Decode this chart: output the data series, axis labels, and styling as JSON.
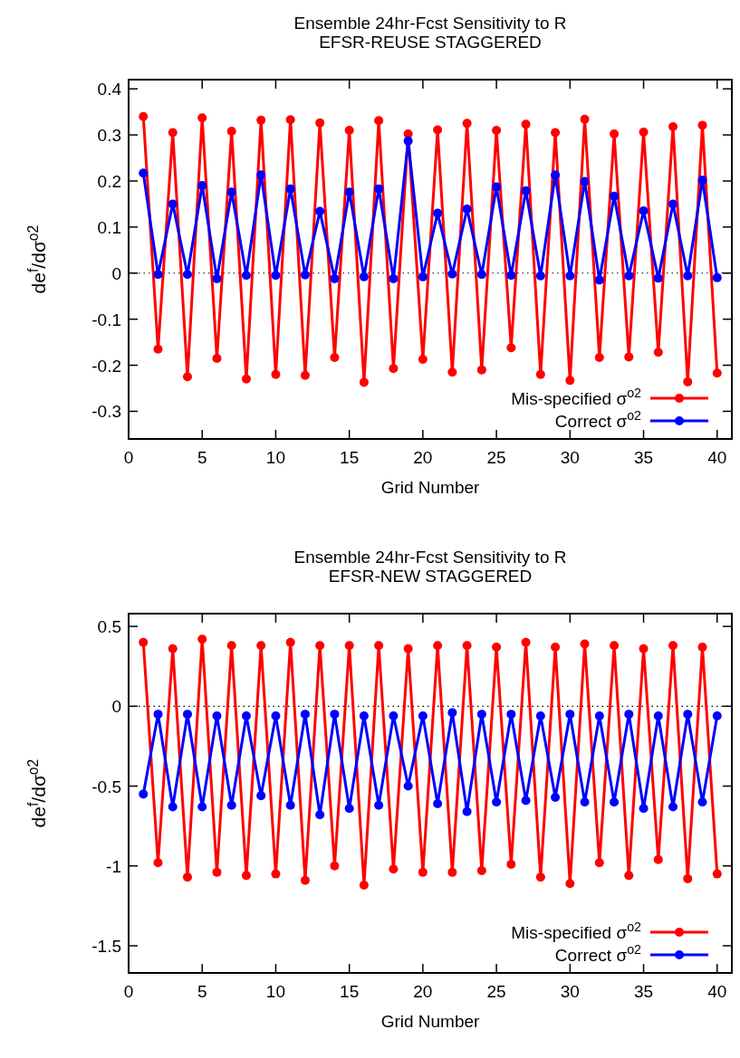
{
  "chart_data": [
    {
      "type": "line",
      "title": "Ensemble 24hr-Fcst Sensitivity to R",
      "subtitle": "EFSR-REUSE STAGGERED",
      "xlabel": "Grid Number",
      "ylabel": "de$^{f}$/dσ$^{o2}$",
      "x": [
        1,
        2,
        3,
        4,
        5,
        6,
        7,
        8,
        9,
        10,
        11,
        12,
        13,
        14,
        15,
        16,
        17,
        18,
        19,
        20,
        21,
        22,
        23,
        24,
        25,
        26,
        27,
        28,
        29,
        30,
        31,
        32,
        33,
        34,
        35,
        36,
        37,
        38,
        39,
        40
      ],
      "series": [
        {
          "name": "Mis-specified σ$^{o2}$",
          "color": "#ff0000",
          "values": [
            0.34,
            -0.165,
            0.305,
            -0.225,
            0.337,
            -0.185,
            0.308,
            -0.23,
            0.332,
            -0.22,
            0.333,
            -0.222,
            0.326,
            -0.183,
            0.31,
            -0.237,
            0.331,
            -0.207,
            0.302,
            -0.187,
            0.311,
            -0.215,
            0.325,
            -0.21,
            0.31,
            -0.162,
            0.323,
            -0.22,
            0.305,
            -0.233,
            0.334,
            -0.183,
            0.302,
            -0.182,
            0.306,
            -0.172,
            0.318,
            -0.236,
            0.321,
            -0.217
          ]
        },
        {
          "name": "Correct σ$^{o2}$",
          "color": "#0000ff",
          "values": [
            0.217,
            -0.003,
            0.15,
            -0.003,
            0.19,
            -0.012,
            0.176,
            -0.005,
            0.213,
            -0.005,
            0.183,
            -0.004,
            0.134,
            -0.012,
            0.176,
            -0.008,
            0.183,
            -0.012,
            0.287,
            -0.008,
            0.13,
            -0.002,
            0.139,
            -0.003,
            0.187,
            -0.005,
            0.179,
            -0.006,
            0.213,
            -0.006,
            0.199,
            -0.015,
            0.167,
            -0.006,
            0.135,
            -0.011,
            0.15,
            -0.006,
            0.202,
            -0.01
          ]
        }
      ],
      "xlim": [
        0,
        41
      ],
      "ylim": [
        -0.36,
        0.42
      ],
      "xticks": [
        0,
        5,
        10,
        15,
        20,
        25,
        30,
        35,
        40
      ],
      "yticks": [
        -0.3,
        -0.2,
        -0.1,
        0,
        0.1,
        0.2,
        0.3,
        0.4
      ],
      "ref_lines": [
        {
          "axis": "y",
          "value": 0,
          "line_style": "dotted",
          "color": "#000000"
        }
      ],
      "marker": "circle",
      "line_style": "solid",
      "legend": "bottom right",
      "grid": false
    },
    {
      "type": "line",
      "title": "Ensemble 24hr-Fcst Sensitivity to R",
      "subtitle": "EFSR-NEW STAGGERED",
      "xlabel": "Grid Number",
      "ylabel": "de$^{f}$/dσ$^{o2}$",
      "x": [
        1,
        2,
        3,
        4,
        5,
        6,
        7,
        8,
        9,
        10,
        11,
        12,
        13,
        14,
        15,
        16,
        17,
        18,
        19,
        20,
        21,
        22,
        23,
        24,
        25,
        26,
        27,
        28,
        29,
        30,
        31,
        32,
        33,
        34,
        35,
        36,
        37,
        38,
        39,
        40
      ],
      "series": [
        {
          "name": "Mis-specified σ$^{o2}$",
          "color": "#ff0000",
          "values": [
            0.4,
            -0.98,
            0.36,
            -1.07,
            0.42,
            -1.04,
            0.38,
            -1.06,
            0.38,
            -1.05,
            0.4,
            -1.09,
            0.38,
            -1.0,
            0.38,
            -1.12,
            0.38,
            -1.02,
            0.36,
            -1.04,
            0.38,
            -1.04,
            0.38,
            -1.03,
            0.37,
            -0.99,
            0.4,
            -1.07,
            0.37,
            -1.11,
            0.39,
            -0.98,
            0.38,
            -1.06,
            0.36,
            -0.96,
            0.38,
            -1.08,
            0.37,
            -1.05
          ]
        },
        {
          "name": "Correct σ$^{o2}$",
          "color": "#0000ff",
          "values": [
            -0.55,
            -0.05,
            -0.63,
            -0.05,
            -0.63,
            -0.06,
            -0.62,
            -0.06,
            -0.56,
            -0.06,
            -0.62,
            -0.05,
            -0.68,
            -0.05,
            -0.64,
            -0.06,
            -0.62,
            -0.06,
            -0.5,
            -0.06,
            -0.61,
            -0.04,
            -0.66,
            -0.05,
            -0.6,
            -0.05,
            -0.59,
            -0.06,
            -0.57,
            -0.05,
            -0.6,
            -0.06,
            -0.6,
            -0.05,
            -0.64,
            -0.06,
            -0.63,
            -0.05,
            -0.6,
            -0.06
          ]
        }
      ],
      "xlim": [
        0,
        41
      ],
      "ylim": [
        -1.67,
        0.58
      ],
      "xticks": [
        0,
        5,
        10,
        15,
        20,
        25,
        30,
        35,
        40
      ],
      "yticks": [
        -1.5,
        -1,
        -0.5,
        0,
        0.5
      ],
      "ref_lines": [
        {
          "axis": "y",
          "value": 0,
          "line_style": "dotted",
          "color": "#000000"
        }
      ],
      "marker": "circle",
      "line_style": "solid",
      "legend": "bottom right",
      "grid": false
    }
  ]
}
